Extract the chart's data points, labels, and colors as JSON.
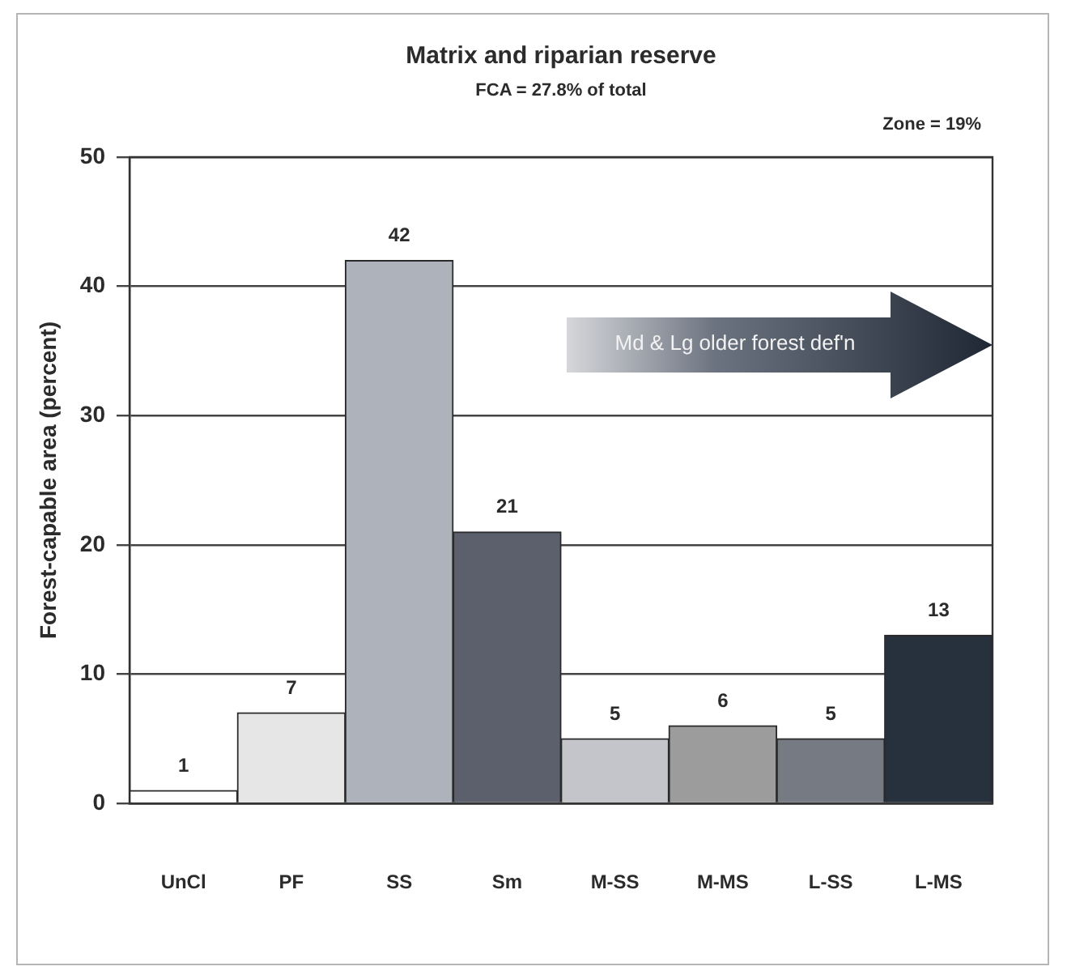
{
  "chart_data": {
    "type": "bar",
    "title": "Matrix and riparian reserve",
    "subtitle": "FCA = 27.8% of total",
    "ylabel": "Forest-capable area (percent)",
    "annotations": [
      "Zone = 19%",
      "Md & Lg older forest def'n"
    ],
    "categories": [
      "UnCl",
      "PF",
      "SS",
      "Sm",
      "M-SS",
      "M-MS",
      "L-SS",
      "L-MS"
    ],
    "values": [
      1,
      7,
      42,
      21,
      5,
      6,
      5,
      13
    ],
    "colors": [
      "#ffffff",
      "#e6e6e6",
      "#aeb2ba",
      "#5b606c",
      "#c3c5cb",
      "#9c9c9c",
      "#767a83",
      "#27313e"
    ],
    "ylim": [
      0,
      50
    ],
    "yticks": [
      0,
      10,
      20,
      30,
      40,
      50
    ],
    "grid": "y",
    "data_labels": true
  }
}
